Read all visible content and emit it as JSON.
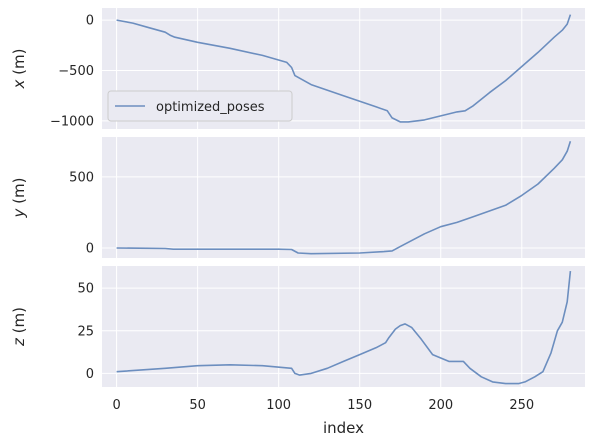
{
  "chart_data": [
    {
      "type": "line",
      "ylabel_var": "x",
      "ylabel_unit": " (m)",
      "xlim": [
        -9,
        289
      ],
      "ylim": [
        -1080,
        120
      ],
      "yticks": [
        0,
        -500,
        -1000
      ],
      "ytick_labels": [
        "0",
        "−500",
        "−1000"
      ],
      "legend": "left",
      "series": [
        {
          "name": "optimized_poses",
          "x": [
            0,
            10,
            20,
            30,
            33,
            36,
            50,
            70,
            90,
            105,
            108,
            110,
            120,
            140,
            160,
            167,
            170,
            175,
            180,
            190,
            200,
            205,
            210,
            215,
            220,
            230,
            240,
            250,
            260,
            270,
            275,
            278,
            280
          ],
          "y": [
            0,
            -30,
            -75,
            -120,
            -150,
            -170,
            -220,
            -280,
            -350,
            -420,
            -470,
            -550,
            -640,
            -750,
            -860,
            -900,
            -970,
            -1010,
            -1010,
            -990,
            -950,
            -930,
            -910,
            -900,
            -850,
            -720,
            -600,
            -460,
            -320,
            -170,
            -100,
            -40,
            55
          ]
        }
      ]
    },
    {
      "type": "line",
      "ylabel_var": "y",
      "ylabel_unit": " (m)",
      "xlim": [
        -9,
        289
      ],
      "ylim": [
        -70,
        780
      ],
      "yticks": [
        0,
        500
      ],
      "ytick_labels": [
        "0",
        "500"
      ],
      "series": [
        {
          "x": [
            0,
            30,
            35,
            100,
            108,
            112,
            120,
            150,
            165,
            170,
            175,
            190,
            200,
            210,
            220,
            230,
            240,
            250,
            260,
            270,
            275,
            278,
            280
          ],
          "y": [
            0,
            -3,
            -8,
            -8,
            -10,
            -35,
            -40,
            -35,
            -25,
            -20,
            10,
            100,
            150,
            180,
            220,
            260,
            300,
            370,
            450,
            560,
            620,
            680,
            750
          ]
        }
      ]
    },
    {
      "type": "line",
      "ylabel_var": "z",
      "ylabel_unit": " (m)",
      "xlim": [
        -9,
        289
      ],
      "ylim": [
        -8,
        63
      ],
      "yticks": [
        0,
        25,
        50
      ],
      "ytick_labels": [
        "0",
        "25",
        "50"
      ],
      "xticks": [
        0,
        50,
        100,
        150,
        200,
        250
      ],
      "xtick_labels": [
        "0",
        "50",
        "100",
        "150",
        "200",
        "250"
      ],
      "xlabel": "index",
      "series": [
        {
          "x": [
            0,
            30,
            50,
            70,
            90,
            108,
            110,
            113,
            120,
            130,
            140,
            150,
            160,
            166,
            168,
            172,
            175,
            178,
            182,
            188,
            195,
            205,
            210,
            214,
            218,
            225,
            232,
            240,
            248,
            252,
            258,
            263,
            268,
            272,
            275,
            278,
            280
          ],
          "y": [
            1,
            3,
            4.5,
            5,
            4.5,
            3,
            0,
            -1,
            0,
            3,
            7,
            11,
            15,
            18,
            21,
            26,
            28,
            29,
            27,
            20,
            11,
            7,
            7,
            7,
            3,
            -2,
            -5,
            -6,
            -6,
            -5,
            -2,
            1,
            12,
            25,
            30,
            42,
            60
          ]
        }
      ]
    }
  ]
}
